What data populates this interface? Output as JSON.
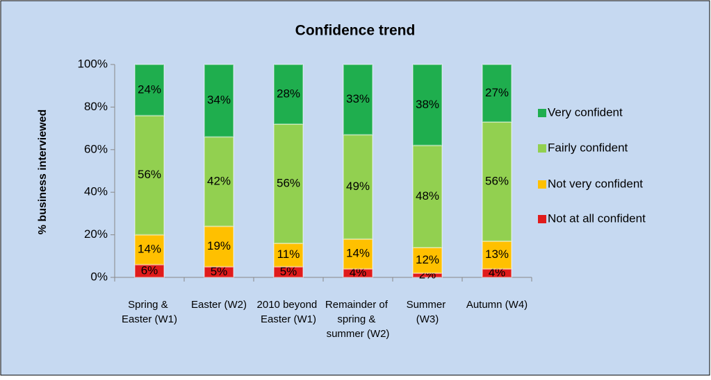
{
  "chart_data": {
    "type": "stacked_bar",
    "title": "Confidence trend",
    "y_label": "% business interviewed",
    "categories": [
      "Spring & Easter (W1)",
      "Easter (W2)",
      "2010 beyond Easter (W1)",
      "Remainder of spring & summer (W2)",
      "Summer (W3)",
      "Autumn (W4)"
    ],
    "series": [
      {
        "name": "Not at all confident",
        "color": "#e01b1b",
        "values": [
          6,
          5,
          5,
          4,
          2,
          4
        ],
        "value_labels": [
          "6%",
          "5%",
          "5%",
          "4%",
          "2%",
          "4%"
        ]
      },
      {
        "name": "Not very  confident",
        "color": "#ffc000",
        "values": [
          14,
          19,
          11,
          14,
          12,
          13
        ],
        "value_labels": [
          "14%",
          "19%",
          "11%",
          "14%",
          "12%",
          "13%"
        ]
      },
      {
        "name": "Fairly confident",
        "color": "#92d050",
        "values": [
          56,
          42,
          56,
          49,
          48,
          56
        ],
        "value_labels": [
          "56%",
          "42%",
          "56%",
          "49%",
          "48%",
          "56%"
        ]
      },
      {
        "name": "Very confident",
        "color": "#1fae4e",
        "values": [
          24,
          34,
          28,
          33,
          38,
          27
        ],
        "value_labels": [
          "24%",
          "34%",
          "28%",
          "33%",
          "38%",
          "27%"
        ]
      }
    ],
    "ylim": [
      0,
      100
    ],
    "yticks": [
      {
        "value": 0,
        "label": "0%"
      },
      {
        "value": 20,
        "label": "20%"
      },
      {
        "value": 40,
        "label": "40%"
      },
      {
        "value": 60,
        "label": "60%"
      },
      {
        "value": 80,
        "label": "80%"
      },
      {
        "value": 100,
        "label": "100%"
      }
    ],
    "legend": "right"
  }
}
